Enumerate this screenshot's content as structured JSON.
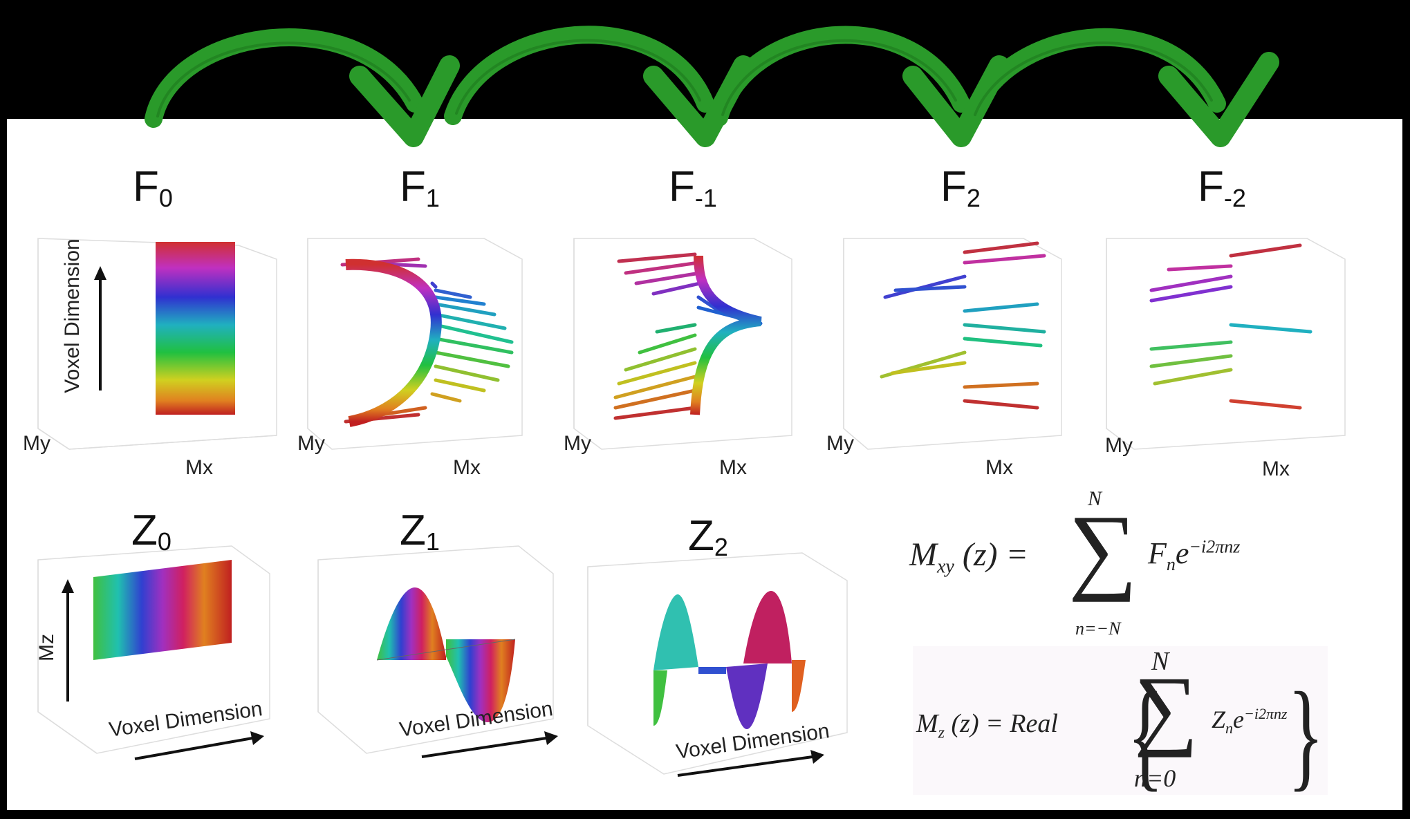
{
  "f_titles": {
    "f0": {
      "base": "F",
      "sub": "0"
    },
    "f1": {
      "base": "F",
      "sub": "1"
    },
    "fm1": {
      "base": "F",
      "sub": "-1"
    },
    "f2": {
      "base": "F",
      "sub": "2"
    },
    "fm2": {
      "base": "F",
      "sub": "-2"
    }
  },
  "z_titles": {
    "z0": {
      "base": "Z",
      "sub": "0"
    },
    "z1": {
      "base": "Z",
      "sub": "1"
    },
    "z2": {
      "base": "Z",
      "sub": "2"
    }
  },
  "axes": {
    "my": "My",
    "mx": "Mx",
    "mz": "Mz",
    "voxel": "Voxel Dimension"
  },
  "equations": {
    "mxy_lhs": "M",
    "mxy_sub": "xy",
    "mxy_arg": "(z) =",
    "mxy_sum_top": "N",
    "mxy_sum_bottom": "n=−N",
    "mxy_term": "F",
    "mxy_term_sub": "n",
    "mxy_exp": "e",
    "mxy_exp_sup": "−i2πnz",
    "mz_lhs": "M",
    "mz_sub": "z",
    "mz_arg": "(z) = Real",
    "mz_sum_top": "N",
    "mz_sum_bottom": "n=0",
    "mz_term": "Z",
    "mz_term_sub": "n",
    "mz_exp": "e",
    "mz_exp_sup": "−i2πnz"
  },
  "colors": {
    "arrow": "#2a9a2a",
    "arrow_dark": "#1e7a1e",
    "background_top": "#000000",
    "panel": "#ffffff"
  }
}
